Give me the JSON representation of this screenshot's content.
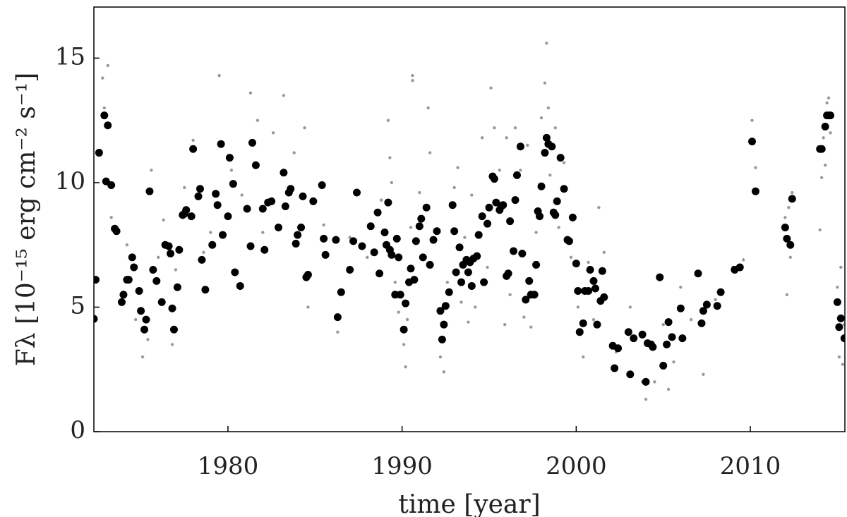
{
  "chart_data": {
    "type": "scatter",
    "xlabel": "time [year]",
    "ylabel": "Fλ [10⁻¹⁵ erg cm⁻² s⁻¹]",
    "xlim": [
      1972.3,
      2015.43
    ],
    "ylim": [
      0,
      17.05
    ],
    "xticks": [
      1980,
      1990,
      2000,
      2010
    ],
    "yticks": [
      0,
      5,
      10,
      15
    ],
    "series": [
      {
        "color": "#999999",
        "size": 2.2,
        "x": [
          1972.8,
          1973.1,
          1972.9,
          1973.3,
          1974.2,
          1974.7,
          1975.1,
          1975.4,
          1975.6,
          1976.0,
          1976.3,
          1976.8,
          1977.0,
          1977.5,
          1978.0,
          1978.6,
          1979.0,
          1979.5,
          1980.2,
          1980.8,
          1981.3,
          1981.7,
          1982.0,
          1982.6,
          1983.2,
          1983.8,
          1984.4,
          1984.6,
          1985.5,
          1986.3,
          1987.0,
          1988.0,
          1988.8,
          1989.2,
          1989.3,
          1989.4,
          1989.6,
          1989.8,
          1990.1,
          1990.2,
          1990.3,
          1990.5,
          1990.6,
          1990.6,
          1991.0,
          1991.5,
          1991.6,
          1992.2,
          1992.4,
          1992.6,
          1993.0,
          1993.2,
          1993.4,
          1993.6,
          1993.8,
          1994.0,
          1994.2,
          1994.6,
          1994.9,
          1995.1,
          1995.3,
          1995.6,
          1995.9,
          1996.0,
          1996.2,
          1996.5,
          1996.8,
          1997.0,
          1997.2,
          1997.4,
          1997.7,
          1998.0,
          1998.2,
          1998.3,
          1998.4,
          1998.5,
          1998.8,
          1999.0,
          1999.3,
          1999.7,
          2000.1,
          2000.4,
          2000.7,
          2001.0,
          2001.3,
          2001.6,
          2002.3,
          2003.1,
          2003.8,
          2004.0,
          2004.5,
          2005.0,
          2005.3,
          2005.6,
          2006.0,
          2006.6,
          2007.3,
          2008.0,
          2009.0,
          2009.6,
          2010.1,
          2010.3,
          2012.0,
          2012.1,
          2012.3,
          2012.4,
          2012.2,
          2014.0,
          2014.1,
          2014.2,
          2014.3,
          2014.4,
          2014.5,
          2014.6,
          2015.0,
          2015.1,
          2015.2,
          2015.3,
          2015.4
        ],
        "values": [
          14.2,
          14.7,
          13.0,
          8.6,
          7.5,
          4.5,
          3.0,
          3.7,
          10.5,
          7.0,
          8.5,
          3.5,
          6.5,
          9.8,
          11.7,
          7.2,
          8.0,
          14.3,
          10.5,
          9.5,
          13.6,
          12.5,
          8.0,
          12.0,
          13.5,
          11.2,
          12.2,
          5.0,
          8.3,
          4.0,
          7.8,
          7.0,
          9.3,
          12.5,
          11.0,
          10.0,
          6.0,
          4.8,
          3.5,
          2.6,
          4.5,
          8.2,
          14.3,
          14.1,
          9.6,
          13.0,
          11.2,
          3.0,
          2.4,
          6.0,
          9.8,
          10.6,
          5.2,
          7.8,
          4.4,
          9.5,
          5.0,
          11.8,
          6.6,
          13.8,
          12.2,
          10.5,
          4.3,
          11.8,
          5.5,
          12.2,
          10.5,
          4.6,
          11.5,
          4.2,
          8.0,
          12.6,
          14.0,
          15.6,
          13.0,
          10.3,
          12.2,
          8.2,
          10.8,
          7.0,
          5.0,
          3.0,
          6.8,
          4.5,
          9.0,
          7.2,
          3.2,
          5.0,
          2.0,
          1.3,
          2.0,
          4.3,
          1.7,
          2.8,
          5.8,
          4.5,
          2.3,
          5.3,
          6.6,
          6.9,
          12.5,
          10.6,
          8.6,
          5.5,
          7.0,
          9.6,
          9.0,
          8.1,
          10.2,
          11.8,
          10.7,
          13.2,
          13.4,
          12.0,
          5.8,
          3.0,
          6.6,
          2.7,
          4.3
        ]
      },
      {
        "color": "#000000",
        "size": 5.5,
        "x": [
          1972.3,
          1972.4,
          1972.6,
          1972.9,
          1973.0,
          1973.1,
          1973.3,
          1973.5,
          1973.6,
          1973.9,
          1974.0,
          1974.2,
          1974.3,
          1974.5,
          1974.6,
          1974.9,
          1975.0,
          1975.2,
          1975.3,
          1975.5,
          1975.7,
          1975.9,
          1976.2,
          1976.4,
          1976.6,
          1976.7,
          1976.8,
          1976.9,
          1977.1,
          1977.2,
          1977.4,
          1977.5,
          1977.6,
          1977.9,
          1978.0,
          1978.3,
          1978.4,
          1978.5,
          1978.7,
          1979.1,
          1979.3,
          1979.4,
          1979.6,
          1979.7,
          1980.0,
          1980.1,
          1980.3,
          1980.4,
          1980.7,
          1981.1,
          1981.3,
          1981.4,
          1981.6,
          1982.0,
          1982.1,
          1982.3,
          1982.5,
          1982.9,
          1983.2,
          1983.3,
          1983.5,
          1983.6,
          1983.9,
          1984.0,
          1984.2,
          1984.3,
          1984.5,
          1984.6,
          1984.9,
          1985.4,
          1985.5,
          1985.6,
          1986.2,
          1986.3,
          1986.5,
          1987.0,
          1987.2,
          1987.4,
          1987.7,
          1988.2,
          1988.4,
          1988.6,
          1988.7,
          1989.0,
          1989.1,
          1989.2,
          1989.3,
          1989.4,
          1989.6,
          1989.7,
          1989.8,
          1989.9,
          1990.1,
          1990.2,
          1990.4,
          1990.5,
          1990.7,
          1990.8,
          1991.0,
          1991.1,
          1991.2,
          1991.4,
          1991.6,
          1991.8,
          1992.0,
          1992.2,
          1992.3,
          1992.4,
          1992.5,
          1992.7,
          1992.9,
          1993.0,
          1993.1,
          1993.3,
          1993.4,
          1993.5,
          1993.7,
          1993.8,
          1993.9,
          1994.0,
          1994.1,
          1994.3,
          1994.4,
          1994.6,
          1994.7,
          1994.9,
          1995.0,
          1995.2,
          1995.3,
          1995.4,
          1995.6,
          1995.7,
          1995.8,
          1996.0,
          1996.1,
          1996.2,
          1996.4,
          1996.5,
          1996.6,
          1996.8,
          1996.9,
          1997.1,
          1997.3,
          1997.4,
          1997.6,
          1997.7,
          1997.8,
          1997.9,
          1998.0,
          1998.2,
          1998.3,
          1998.4,
          1998.6,
          1998.7,
          1998.8,
          1998.9,
          1999.1,
          1999.3,
          1999.5,
          1999.6,
          1999.8,
          2000.0,
          2000.1,
          2000.2,
          2000.4,
          2000.5,
          2000.7,
          2000.8,
          2001.0,
          2001.1,
          2001.2,
          2001.4,
          2001.5,
          2001.6,
          2002.1,
          2002.2,
          2002.4,
          2003.0,
          2003.1,
          2003.3,
          2003.8,
          2004.0,
          2004.1,
          2004.3,
          2004.4,
          2004.8,
          2005.0,
          2005.2,
          2005.3,
          2005.5,
          2006.0,
          2006.1,
          2007.0,
          2007.2,
          2007.3,
          2007.5,
          2008.1,
          2008.3,
          2009.1,
          2009.4,
          2010.1,
          2010.3,
          2012.0,
          2012.1,
          2012.3,
          2012.4,
          2014.0,
          2014.1,
          2014.3,
          2014.4,
          2014.5,
          2014.6,
          2015.0,
          2015.1,
          2015.2,
          2015.4
        ],
        "values": [
          4.53,
          6.1,
          11.2,
          12.7,
          10.05,
          12.3,
          9.9,
          8.15,
          8.05,
          5.2,
          5.5,
          6.1,
          6.1,
          7.0,
          6.6,
          5.65,
          4.85,
          4.1,
          4.5,
          9.65,
          6.5,
          6.05,
          5.2,
          7.5,
          7.45,
          7.15,
          4.95,
          4.1,
          5.8,
          7.3,
          8.7,
          8.75,
          8.9,
          8.65,
          11.35,
          9.45,
          9.75,
          6.9,
          5.7,
          7.5,
          9.55,
          9.1,
          11.55,
          7.9,
          8.65,
          11.0,
          9.95,
          6.4,
          5.85,
          8.95,
          7.45,
          11.6,
          10.7,
          8.95,
          7.3,
          9.2,
          9.25,
          8.2,
          10.4,
          9.05,
          9.6,
          9.75,
          7.55,
          7.9,
          8.2,
          9.45,
          6.2,
          6.3,
          9.25,
          9.9,
          7.75,
          7.1,
          7.7,
          4.6,
          5.6,
          6.5,
          7.65,
          9.6,
          7.45,
          8.25,
          7.2,
          8.8,
          6.35,
          8.0,
          7.5,
          9.2,
          7.3,
          7.1,
          5.5,
          7.75,
          7.0,
          5.5,
          4.1,
          5.15,
          6.0,
          6.55,
          6.1,
          7.65,
          8.25,
          8.55,
          7.0,
          9.0,
          6.7,
          7.7,
          8.05,
          4.85,
          3.7,
          4.3,
          5.05,
          5.6,
          9.1,
          8.05,
          6.4,
          7.4,
          6.0,
          6.7,
          6.9,
          6.4,
          6.8,
          5.85,
          6.95,
          7.05,
          7.9,
          8.65,
          6.0,
          8.35,
          9.0,
          10.25,
          10.15,
          9.2,
          8.9,
          9.05,
          9.1,
          6.25,
          6.35,
          8.45,
          7.25,
          9.3,
          10.3,
          11.45,
          7.15,
          5.3,
          6.05,
          5.5,
          5.5,
          6.7,
          8.85,
          8.65,
          9.85,
          11.2,
          11.8,
          11.55,
          11.45,
          8.8,
          8.7,
          9.25,
          11.0,
          9.75,
          7.7,
          7.65,
          8.6,
          6.75,
          5.65,
          4.0,
          4.35,
          5.65,
          5.65,
          6.5,
          6.05,
          5.75,
          4.3,
          5.25,
          6.45,
          5.4,
          3.45,
          2.55,
          3.35,
          4.0,
          2.3,
          3.75,
          3.9,
          2.0,
          3.55,
          3.5,
          3.4,
          6.2,
          2.65,
          3.5,
          4.4,
          3.8,
          4.95,
          3.75,
          6.35,
          4.35,
          4.85,
          5.1,
          5.05,
          5.6,
          6.5,
          6.6,
          11.65,
          9.65,
          8.2,
          7.75,
          7.5,
          9.35,
          11.35,
          11.35,
          12.25,
          12.7,
          12.7,
          12.7,
          5.2,
          4.2,
          4.55,
          3.75
        ]
      }
    ]
  }
}
